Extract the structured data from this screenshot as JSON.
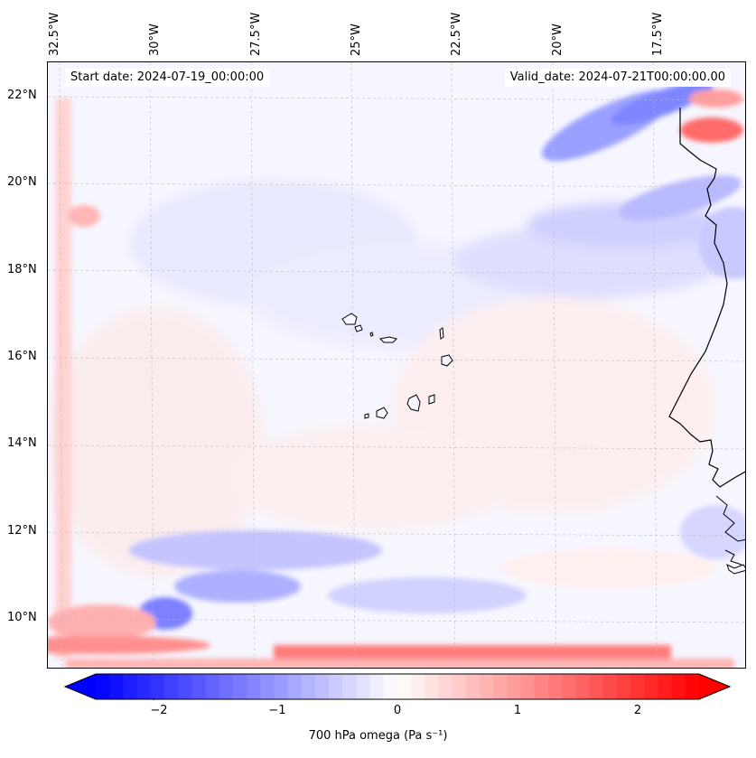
{
  "map": {
    "header": {
      "start_date": "Start date: 2024-07-19_00:00:00",
      "valid_date": "Valid_date: 2024-07-21T00:00:00.00"
    },
    "lon_ticks": [
      "32.5°W",
      "30°W",
      "27.5°W",
      "25°W",
      "22.5°W",
      "20°W",
      "17.5°W"
    ],
    "lat_ticks": [
      "22°N",
      "20°N",
      "18°N",
      "16°N",
      "14°N",
      "12°N",
      "10°N"
    ],
    "colors": {
      "negative": "#0000ff",
      "zero": "#ffffff",
      "positive": "#ff0000",
      "coastline": "#000000"
    }
  },
  "colorbar": {
    "ticks": [
      "−2",
      "−1",
      "0",
      "1",
      "2"
    ],
    "label": "700 hPa omega (Pa s⁻¹)",
    "range": [
      -2.75,
      2.75
    ]
  }
}
